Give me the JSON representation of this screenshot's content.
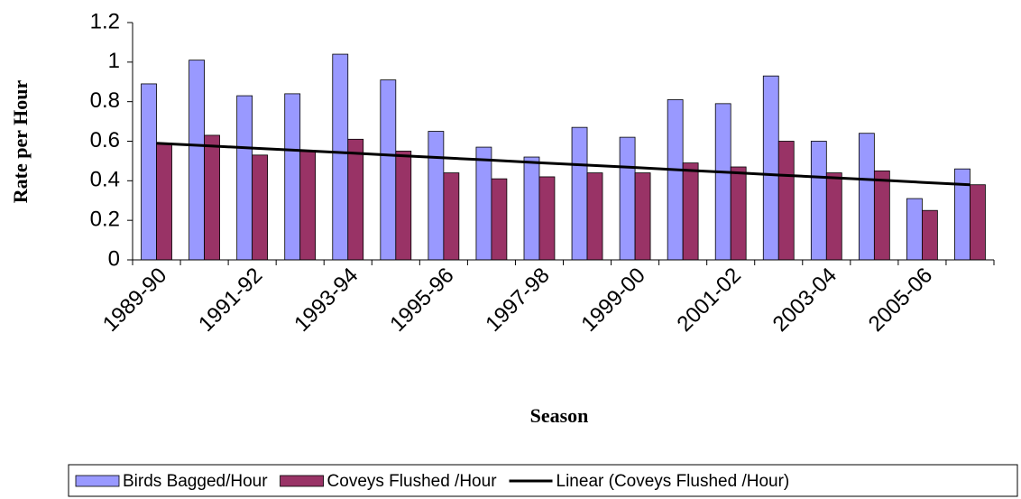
{
  "chart_data": {
    "type": "bar",
    "y_label": "Rate per Hour",
    "x_label": "Season",
    "categories": [
      "1989-90",
      null,
      "1991-92",
      null,
      "1993-94",
      null,
      "1995-96",
      null,
      "1997-98",
      null,
      "1999-00",
      null,
      "2001-02",
      null,
      "2003-04",
      null,
      "2005-06",
      null
    ],
    "series": [
      {
        "name": "Birds Bagged/Hour",
        "color": "#9999ff",
        "values": [
          0.89,
          1.01,
          0.83,
          0.84,
          1.04,
          0.91,
          0.65,
          0.57,
          0.52,
          0.67,
          0.62,
          0.81,
          0.79,
          0.93,
          0.6,
          0.64,
          0.31,
          0.46
        ]
      },
      {
        "name": "Coveys Flushed /Hour",
        "color": "#993366",
        "values": [
          0.59,
          0.63,
          0.53,
          0.55,
          0.61,
          0.55,
          0.44,
          0.41,
          0.42,
          0.44,
          0.44,
          0.49,
          0.47,
          0.6,
          0.44,
          0.45,
          0.25,
          0.38
        ]
      },
      {
        "name": "Linear (Coveys Flushed /Hour)",
        "type": "line",
        "color": "#000000",
        "values": [
          0.59,
          0.578,
          0.565,
          0.553,
          0.541,
          0.528,
          0.516,
          0.504,
          0.491,
          0.479,
          0.467,
          0.454,
          0.442,
          0.429,
          0.417,
          0.405,
          0.392,
          0.38
        ]
      }
    ],
    "ylim": [
      0,
      1.2
    ],
    "yticks": [
      0,
      0.2,
      0.4,
      0.6,
      0.8,
      1,
      1.2
    ],
    "grid": false
  }
}
